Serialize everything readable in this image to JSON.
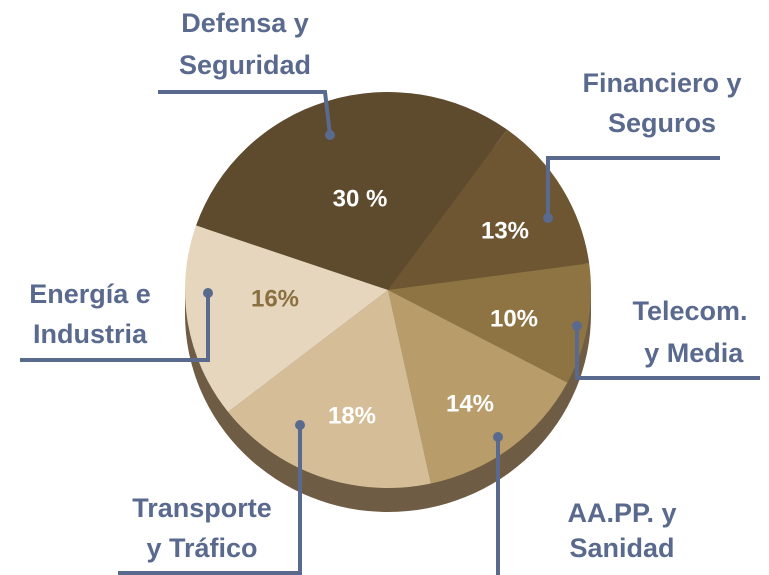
{
  "chart_data": {
    "type": "pie",
    "categories": [
      "Defensa y\nSeguridad",
      "Financiero y\nSeguros",
      "Telecom.\n y  Media",
      "AA.PP. y\nSanidad",
      "Transporte\ny Tráfico",
      "Energía e\nIndustria"
    ],
    "values": [
      30,
      13,
      10,
      14,
      18,
      16
    ],
    "value_labels": [
      "30 %",
      "13%",
      "10%",
      "14%",
      "18%",
      "16%"
    ],
    "colors": [
      "#5e4a2c",
      "#6d5631",
      "#8e7442",
      "#b89c6a",
      "#d5bd97",
      "#e5d6bd"
    ]
  }
}
